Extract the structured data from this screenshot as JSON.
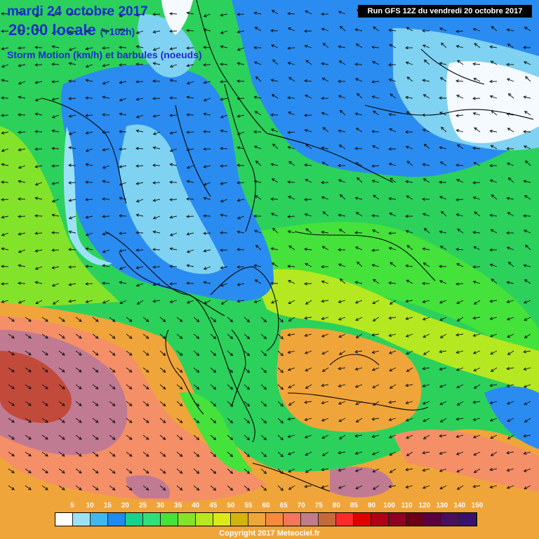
{
  "header": {
    "date": "mardi 24 octobre 2017",
    "time": "20:00 locale",
    "lead": "(+102h)",
    "subtitle": "Storm Motion (km/h) et barbules (noeuds)",
    "run": "Run GFS 12Z du vendredi 20 octobre 2017"
  },
  "legend": {
    "labels": [
      "5",
      "10",
      "15",
      "20",
      "25",
      "30",
      "35",
      "40",
      "45",
      "50",
      "55",
      "60",
      "65",
      "70",
      "75",
      "80",
      "85",
      "90",
      "100",
      "110",
      "120",
      "130",
      "140",
      "150"
    ],
    "colors": [
      "#ffffff",
      "#9be2f6",
      "#3fb8f0",
      "#1f8af0",
      "#16d28a",
      "#2fe07a",
      "#45e23b",
      "#83e32b",
      "#b5e820",
      "#dbe81c",
      "#d2b40c",
      "#f0a53a",
      "#f58a3d",
      "#f4765c",
      "#c27b8b",
      "#c46a3c",
      "#ff2a2a",
      "#e00000",
      "#b00018",
      "#900020",
      "#6a0018",
      "#5a0040",
      "#4a1060",
      "#3a1070"
    ]
  },
  "map_colors": {
    "base": "#2bd15b",
    "blue": "#2a8cf0",
    "light_blue": "#7fd2f2",
    "white": "#f4faff",
    "yellow_green": "#b5e820",
    "orange": "#f0a53a",
    "salmon": "#f48f67",
    "mauve": "#c07a92",
    "dark_red": "#c24a3a"
  },
  "footer": {
    "copyright": "Copyright 2017 Meteociel.fr"
  }
}
